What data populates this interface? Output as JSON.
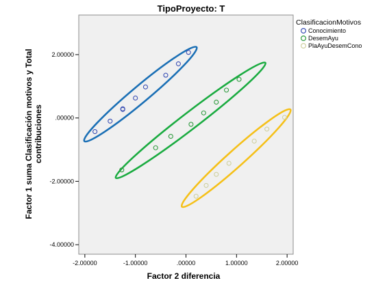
{
  "chart_data": {
    "type": "scatter",
    "title": "TipoProyecto: T",
    "xlabel": "Factor 2 diferencia",
    "ylabel_lines": [
      "Factor 1 suma Clasificación motivos y Total",
      "contribuciones"
    ],
    "xlim": [
      -2.12,
      2.12
    ],
    "ylim": [
      -4.3,
      3.25
    ],
    "xticks": [
      -2,
      -1,
      0,
      1,
      2
    ],
    "xtick_labels": [
      "-2.00000",
      "-1.00000",
      ".00000",
      "1.00000",
      "2.00000"
    ],
    "yticks": [
      -4,
      -2,
      0,
      2
    ],
    "ytick_labels": [
      "-4.00000",
      "-2.00000",
      ".00000",
      "2.00000"
    ],
    "grid": false,
    "legend_title": "ClasificacionMotivos",
    "legend_position": "top-right outside",
    "series": [
      {
        "name": "Conocimiento",
        "color": "#3a4fb4",
        "ellipse_color": "#1a6fb5",
        "x": [
          -1.8,
          -1.5,
          -1.25,
          -1.25,
          -1.0,
          -0.8,
          -0.4,
          -0.15,
          0.05
        ],
        "y": [
          -0.43,
          -0.1,
          0.29,
          0.27,
          0.63,
          0.98,
          1.35,
          1.71,
          2.07
        ]
      },
      {
        "name": "DesemAyu",
        "color": "#2f9a3f",
        "ellipse_color": "#1aab40",
        "x": [
          -1.27,
          -0.6,
          -0.3,
          0.1,
          0.35,
          0.6,
          0.8,
          1.05
        ],
        "y": [
          -1.64,
          -0.94,
          -0.58,
          -0.2,
          0.16,
          0.5,
          0.88,
          1.22
        ]
      },
      {
        "name": "PlaAyuDesemCono",
        "color": "#cfd0a0",
        "ellipse_color": "#f5c018",
        "x": [
          0.2,
          0.4,
          0.6,
          0.85,
          1.35,
          1.6,
          1.95
        ],
        "y": [
          -2.47,
          -2.13,
          -1.78,
          -1.43,
          -0.73,
          -0.35,
          0.02
        ]
      }
    ]
  }
}
